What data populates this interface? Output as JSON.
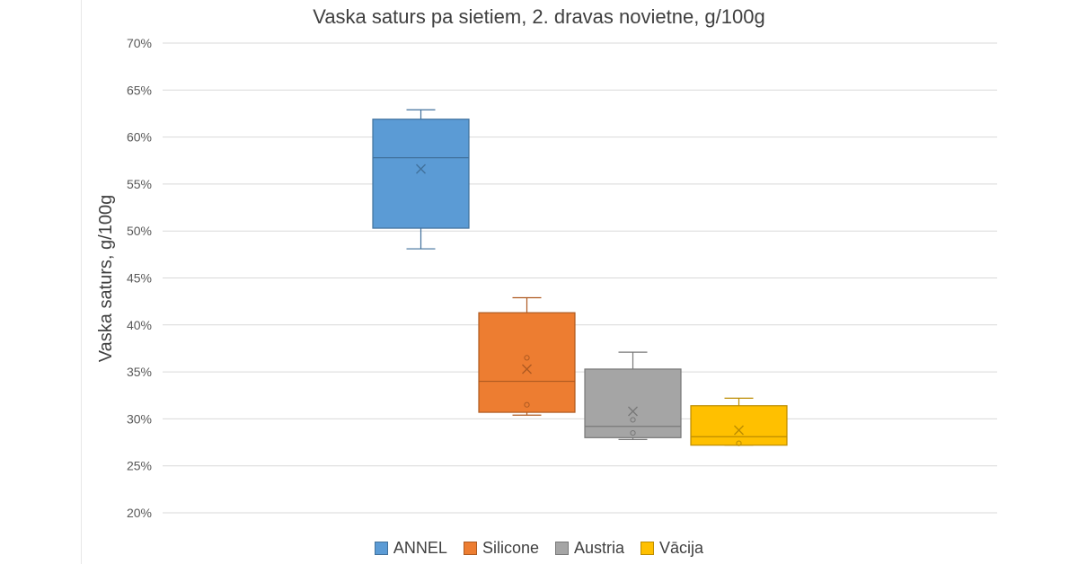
{
  "chart_data": {
    "type": "box",
    "title": "Vaska saturs pa sietiem, 2. dravas novietne, g/100g",
    "ylabel": "Vaska saturs, g/100g",
    "xlabel": "",
    "ylim": [
      20,
      70
    ],
    "yticks": [
      "20%",
      "25%",
      "30%",
      "35%",
      "40%",
      "45%",
      "50%",
      "55%",
      "60%",
      "65%",
      "70%"
    ],
    "grid": true,
    "legend_position": "bottom",
    "series": [
      {
        "name": "ANNEL",
        "color": "#5B9BD5",
        "stroke": "#41719C",
        "whisker_low": 48.1,
        "q1": 50.3,
        "median": 57.8,
        "q3": 61.9,
        "whisker_high": 62.9,
        "mean": 56.6,
        "outliers": []
      },
      {
        "name": "Silicone",
        "color": "#ED7D31",
        "stroke": "#AE5A21",
        "whisker_low": 30.4,
        "q1": 30.7,
        "median": 34.0,
        "q3": 41.3,
        "whisker_high": 42.9,
        "mean": 35.3,
        "outliers": [
          36.5,
          31.5
        ]
      },
      {
        "name": "Austria",
        "color": "#A5A5A5",
        "stroke": "#787878",
        "whisker_low": 27.8,
        "q1": 28.0,
        "median": 29.2,
        "q3": 35.3,
        "whisker_high": 37.1,
        "mean": 30.8,
        "outliers": [
          29.9,
          28.5
        ]
      },
      {
        "name": "Vācija",
        "color": "#FFC000",
        "stroke": "#BC8C00",
        "whisker_low": 27.2,
        "q1": 27.2,
        "median": 28.1,
        "q3": 31.4,
        "whisker_high": 32.2,
        "mean": 28.8,
        "outliers": [
          27.4
        ]
      }
    ]
  }
}
